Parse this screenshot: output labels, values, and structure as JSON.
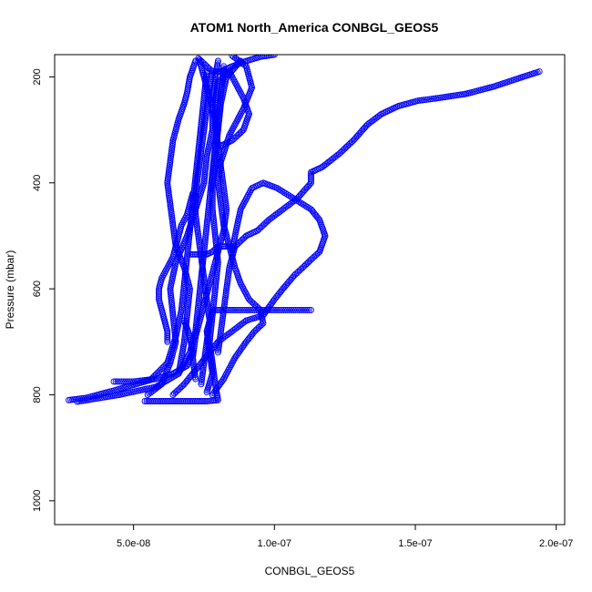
{
  "chart_data": {
    "type": "scatter",
    "title": "ATOM1 North_America CONBGL_GEOS5",
    "xlabel": "CONBGL_GEOS5",
    "ylabel": "Pressure (mbar)",
    "xlim": [
      2.2e-08,
      2.03e-07
    ],
    "ylim": [
      1045,
      158
    ],
    "y_inverted": true,
    "x_ticks": [
      {
        "value": 5e-08,
        "label": "5.0e-08"
      },
      {
        "value": 1e-07,
        "label": "1.0e-07"
      },
      {
        "value": 1.5e-07,
        "label": "1.5e-07"
      },
      {
        "value": 2e-07,
        "label": "2.0e-07"
      }
    ],
    "y_ticks": [
      {
        "value": 200,
        "label": "200"
      },
      {
        "value": 400,
        "label": "400"
      },
      {
        "value": 600,
        "label": "600"
      },
      {
        "value": 800,
        "label": "800"
      },
      {
        "value": 1000,
        "label": "1000"
      }
    ],
    "color": "#0000ff",
    "marker": "open-circle",
    "series": [
      {
        "values": [
          [
            2.7e-08,
            810
          ],
          [
            3.3e-08,
            806
          ],
          [
            4.3e-08,
            792
          ],
          [
            5.6e-08,
            772
          ],
          [
            6.2e-08,
            740
          ],
          [
            6.5e-08,
            690
          ],
          [
            6.7e-08,
            640
          ],
          [
            6.8e-08,
            590
          ],
          [
            6.9e-08,
            540
          ],
          [
            7e-08,
            490
          ],
          [
            7.1e-08,
            440
          ],
          [
            7.2e-08,
            390
          ],
          [
            7.3e-08,
            340
          ],
          [
            7.4e-08,
            290
          ],
          [
            7.5e-08,
            240
          ],
          [
            7.6e-08,
            190
          ]
        ]
      },
      {
        "values": [
          [
            3e-08,
            813
          ],
          [
            4.5e-08,
            800
          ],
          [
            5.8e-08,
            785
          ],
          [
            6.6e-08,
            760
          ],
          [
            7e-08,
            720
          ],
          [
            7.2e-08,
            680
          ],
          [
            7.3e-08,
            630
          ],
          [
            7.4e-08,
            580
          ],
          [
            7.5e-08,
            530
          ],
          [
            7.6e-08,
            480
          ],
          [
            7.7e-08,
            430
          ],
          [
            7.8e-08,
            380
          ],
          [
            7.9e-08,
            330
          ],
          [
            8e-08,
            280
          ],
          [
            8.1e-08,
            230
          ],
          [
            8.2e-08,
            180
          ]
        ]
      },
      {
        "values": [
          [
            5.4e-08,
            812
          ],
          [
            6e-08,
            812
          ],
          [
            6.8e-08,
            812
          ],
          [
            7.6e-08,
            812
          ],
          [
            8e-08,
            810
          ],
          [
            7.9e-08,
            780
          ],
          [
            7.8e-08,
            740
          ],
          [
            7.7e-08,
            700
          ],
          [
            7.8e-08,
            650
          ],
          [
            7.9e-08,
            600
          ],
          [
            8e-08,
            550
          ],
          [
            7.9e-08,
            500
          ],
          [
            7.8e-08,
            450
          ],
          [
            7.8e-08,
            400
          ],
          [
            7.9e-08,
            350
          ],
          [
            8e-08,
            300
          ],
          [
            8.1e-08,
            250
          ],
          [
            8.3e-08,
            200
          ],
          [
            8.8e-08,
            170
          ]
        ]
      },
      {
        "values": [
          [
            5.5e-08,
            800
          ],
          [
            6e-08,
            780
          ],
          [
            6.3e-08,
            740
          ],
          [
            6.5e-08,
            700
          ],
          [
            6.4e-08,
            650
          ],
          [
            6.3e-08,
            600
          ],
          [
            6.5e-08,
            550
          ],
          [
            6.9e-08,
            500
          ],
          [
            7.2e-08,
            450
          ],
          [
            7.5e-08,
            400
          ],
          [
            7.6e-08,
            350
          ],
          [
            7.8e-08,
            300
          ],
          [
            7.8e-08,
            250
          ],
          [
            7.9e-08,
            200
          ],
          [
            8e-08,
            170
          ]
        ]
      },
      {
        "values": [
          [
            7.6e-08,
            795
          ],
          [
            7.8e-08,
            760
          ],
          [
            7.7e-08,
            720
          ],
          [
            7.6e-08,
            680
          ],
          [
            7.8e-08,
            640
          ],
          [
            8e-08,
            640
          ],
          [
            8.6e-08,
            640
          ],
          [
            9.5e-08,
            640
          ],
          [
            1.04e-07,
            640
          ],
          [
            1.13e-07,
            640
          ]
        ]
      },
      {
        "values": [
          [
            7.8e-08,
            800
          ],
          [
            8.2e-08,
            770
          ],
          [
            8.6e-08,
            730
          ],
          [
            9e-08,
            700
          ],
          [
            9.3e-08,
            680
          ],
          [
            9.6e-08,
            665
          ],
          [
            9.5e-08,
            640
          ],
          [
            9.1e-08,
            620
          ],
          [
            8.8e-08,
            590
          ],
          [
            8.6e-08,
            560
          ],
          [
            8.4e-08,
            520
          ],
          [
            8.2e-08,
            480
          ],
          [
            8.1e-08,
            440
          ],
          [
            8e-08,
            400
          ],
          [
            8.1e-08,
            360
          ],
          [
            8.4e-08,
            310
          ],
          [
            8.9e-08,
            260
          ],
          [
            9.2e-08,
            220
          ],
          [
            9e-08,
            180
          ],
          [
            8.5e-08,
            160
          ]
        ]
      },
      {
        "values": [
          [
            6.4e-08,
            800
          ],
          [
            6.8e-08,
            780
          ],
          [
            7.1e-08,
            760
          ],
          [
            7.4e-08,
            740
          ],
          [
            7.7e-08,
            720
          ],
          [
            8e-08,
            700
          ],
          [
            8.5e-08,
            680
          ],
          [
            9e-08,
            660
          ],
          [
            9.6e-08,
            650
          ],
          [
            1e-07,
            620
          ],
          [
            1.03e-07,
            600
          ],
          [
            1.07e-07,
            575
          ],
          [
            1.12e-07,
            550
          ],
          [
            1.16e-07,
            530
          ],
          [
            1.18e-07,
            500
          ],
          [
            1.16e-07,
            470
          ],
          [
            1.13e-07,
            450
          ],
          [
            1.07e-07,
            430
          ],
          [
            1.01e-07,
            410
          ],
          [
            9.6e-08,
            400
          ],
          [
            9.2e-08,
            410
          ],
          [
            8.8e-08,
            450
          ],
          [
            8.6e-08,
            500
          ],
          [
            8.5e-08,
            530
          ]
        ]
      },
      {
        "values": [
          [
            8e-08,
            720
          ],
          [
            8.1e-08,
            680
          ],
          [
            8.2e-08,
            640
          ],
          [
            8.3e-08,
            600
          ],
          [
            8.4e-08,
            560
          ],
          [
            8.6e-08,
            520
          ],
          [
            9e-08,
            500
          ],
          [
            9.4e-08,
            490
          ],
          [
            9.8e-08,
            470
          ],
          [
            1.03e-07,
            450
          ],
          [
            1.08e-07,
            430
          ],
          [
            1.13e-07,
            400
          ],
          [
            1.13e-07,
            380
          ],
          [
            1.17e-07,
            370
          ],
          [
            1.23e-07,
            345
          ],
          [
            1.28e-07,
            320
          ],
          [
            1.33e-07,
            290
          ],
          [
            1.38e-07,
            270
          ],
          [
            1.44e-07,
            255
          ],
          [
            1.51e-07,
            245
          ],
          [
            1.58e-07,
            240
          ],
          [
            1.68e-07,
            232
          ],
          [
            1.78e-07,
            218
          ],
          [
            1.87e-07,
            202
          ],
          [
            1.94e-07,
            190
          ]
        ]
      },
      {
        "values": [
          [
            6.6e-08,
            760
          ],
          [
            6.8e-08,
            700
          ],
          [
            6.9e-08,
            650
          ],
          [
            7e-08,
            600
          ],
          [
            6.8e-08,
            560
          ],
          [
            6.5e-08,
            520
          ],
          [
            6.4e-08,
            480
          ],
          [
            6.3e-08,
            440
          ],
          [
            6.2e-08,
            400
          ],
          [
            6.3e-08,
            360
          ],
          [
            6.4e-08,
            320
          ],
          [
            6.6e-08,
            280
          ],
          [
            6.8e-08,
            250
          ],
          [
            6.9e-08,
            230
          ],
          [
            7e-08,
            200
          ],
          [
            7.2e-08,
            170
          ]
        ]
      },
      {
        "values": [
          [
            7.4e-08,
            780
          ],
          [
            7.5e-08,
            740
          ],
          [
            7.6e-08,
            700
          ],
          [
            7.7e-08,
            660
          ],
          [
            7.6e-08,
            620
          ],
          [
            7.5e-08,
            580
          ],
          [
            7.4e-08,
            540
          ],
          [
            7.3e-08,
            500
          ],
          [
            7.2e-08,
            460
          ],
          [
            7.2e-08,
            420
          ],
          [
            7.3e-08,
            380
          ],
          [
            7.4e-08,
            340
          ],
          [
            7.5e-08,
            300
          ],
          [
            7.6e-08,
            260
          ],
          [
            7.7e-08,
            220
          ],
          [
            7.8e-08,
            190
          ]
        ]
      },
      {
        "values": [
          [
            7.2e-08,
            770
          ],
          [
            7.1e-08,
            730
          ],
          [
            7.2e-08,
            690
          ],
          [
            7.4e-08,
            650
          ],
          [
            7.6e-08,
            610
          ],
          [
            7.8e-08,
            570
          ],
          [
            8e-08,
            530
          ],
          [
            8.2e-08,
            490
          ],
          [
            8.3e-08,
            450
          ],
          [
            8.2e-08,
            410
          ],
          [
            8.1e-08,
            370
          ],
          [
            8e-08,
            330
          ],
          [
            7.9e-08,
            290
          ],
          [
            7.9e-08,
            250
          ],
          [
            8e-08,
            210
          ],
          [
            8.4e-08,
            190
          ],
          [
            8.9e-08,
            240
          ],
          [
            9.1e-08,
            270
          ],
          [
            8.9e-08,
            300
          ],
          [
            8.5e-08,
            320
          ],
          [
            8.1e-08,
            330
          ]
        ]
      },
      {
        "values": [
          [
            4.3e-08,
            775
          ],
          [
            5e-08,
            775
          ],
          [
            5.8e-08,
            770
          ],
          [
            6.4e-08,
            760
          ],
          [
            6.9e-08,
            745
          ],
          [
            7.1e-08,
            720
          ],
          [
            7e-08,
            690
          ],
          [
            6.8e-08,
            660
          ]
        ]
      },
      {
        "values": [
          [
            7e-08,
            535
          ],
          [
            7.3e-08,
            535
          ],
          [
            7.6e-08,
            535
          ],
          [
            7.8e-08,
            530
          ],
          [
            8e-08,
            520
          ],
          [
            8.3e-08,
            520
          ],
          [
            8.6e-08,
            520
          ]
        ]
      },
      {
        "values": [
          [
            8e-08,
            300
          ],
          [
            7.9e-08,
            280
          ],
          [
            7.8e-08,
            260
          ],
          [
            7.7e-08,
            240
          ],
          [
            7.6e-08,
            220
          ],
          [
            7.5e-08,
            200
          ],
          [
            7.4e-08,
            180
          ],
          [
            7.3e-08,
            165
          ],
          [
            7.8e-08,
            190
          ],
          [
            8.1e-08,
            190
          ],
          [
            8.5e-08,
            180
          ],
          [
            9e-08,
            170
          ],
          [
            9.5e-08,
            162
          ],
          [
            1e-07,
            158
          ]
        ]
      },
      {
        "values": [
          [
            6.2e-08,
            700
          ],
          [
            6.2e-08,
            680
          ],
          [
            6.1e-08,
            660
          ],
          [
            6e-08,
            640
          ],
          [
            5.9e-08,
            620
          ],
          [
            5.9e-08,
            600
          ],
          [
            6e-08,
            580
          ],
          [
            6.2e-08,
            560
          ],
          [
            6.4e-08,
            540
          ],
          [
            6.5e-08,
            520
          ],
          [
            6.6e-08,
            500
          ],
          [
            6.7e-08,
            480
          ],
          [
            6.9e-08,
            460
          ],
          [
            7e-08,
            440
          ],
          [
            7.1e-08,
            420
          ]
        ]
      }
    ]
  }
}
